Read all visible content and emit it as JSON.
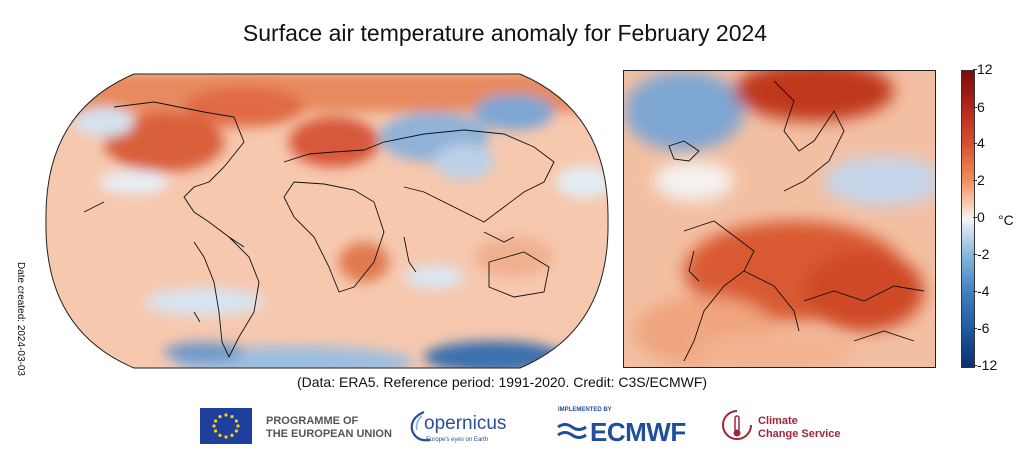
{
  "title": "Surface air temperature anomaly for February 2024",
  "date_created": "Date created: 2024-03-03",
  "credit": "(Data: ERA5.  Reference period: 1991-2020.  Credit: C3S/ECMWF)",
  "colorbar": {
    "ticks": [
      "12",
      "6",
      "4",
      "2",
      "0",
      "-2",
      "-4",
      "-6",
      "-12"
    ],
    "unit": "°C",
    "colors": {
      "max": "#7a0a0a",
      "warm": "#d85230",
      "neutral": "#f5f5f5",
      "cool": "#3f7fbe",
      "min": "#0b2f6b"
    }
  },
  "maps": {
    "world": {
      "projection": "robinson"
    },
    "europe": {
      "region": "Europe"
    }
  },
  "logos": {
    "eu_line1": "PROGRAMME OF",
    "eu_line2": "THE EUROPEAN UNION",
    "copernicus": "opernicus",
    "copernicus_sub": "Europe's eyes on Earth",
    "implemented_by": "IMPLEMENTED BY",
    "ecmwf": "ECMWF",
    "c3s_line1": "Climate",
    "c3s_line2": "Change Service"
  }
}
